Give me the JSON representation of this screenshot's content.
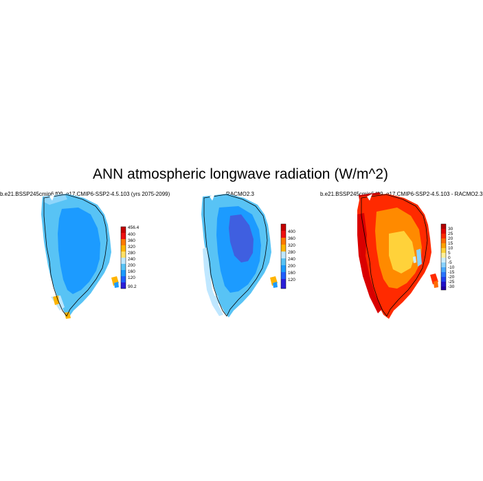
{
  "title": "ANN atmospheric longwave radiation (W/m^2)",
  "panels": [
    {
      "title": "b.e21.BSSP245cmip6.f09_g17.CMIP6-SSP2-4.5.103 (yrs 2075-2099)",
      "colorbar": {
        "labels": [
          "456.4",
          "400",
          "360",
          "320",
          "280",
          "240",
          "200",
          "160",
          "120",
          "90.2"
        ],
        "colors": [
          "#c40000",
          "#ee1010",
          "#ff7a00",
          "#ffb400",
          "#ffe066",
          "#bfe7ff",
          "#58c3f5",
          "#1c9bff",
          "#1f5dff",
          "#2b1fd8"
        ]
      }
    },
    {
      "title": "RACMO2.3",
      "colorbar": {
        "labels": [
          "400",
          "360",
          "320",
          "280",
          "240",
          "200",
          "160",
          "120"
        ],
        "colors": [
          "#c40000",
          "#ee1010",
          "#ff7a00",
          "#ffb400",
          "#bfe7ff",
          "#58c3f5",
          "#1c9bff",
          "#1f5dff",
          "#2b1fd8"
        ]
      }
    },
    {
      "title": "b.e21.BSSP245cmip6.f09_g17.CMIP6-SSP2-4.5.103 - RACMO2.3",
      "colorbar": {
        "labels": [
          "30",
          "25",
          "20",
          "15",
          "10",
          "5",
          "0",
          "-5",
          "-10",
          "-15",
          "-20",
          "-25",
          "-30"
        ],
        "colors": [
          "#b30000",
          "#e00000",
          "#ff2a00",
          "#ff6a00",
          "#ffa000",
          "#ffd23a",
          "#fff09a",
          "#cdeeff",
          "#8ad2ff",
          "#4aa8ff",
          "#2a74ff",
          "#2040ee",
          "#2010c8",
          "#2000a0"
        ]
      }
    }
  ]
}
